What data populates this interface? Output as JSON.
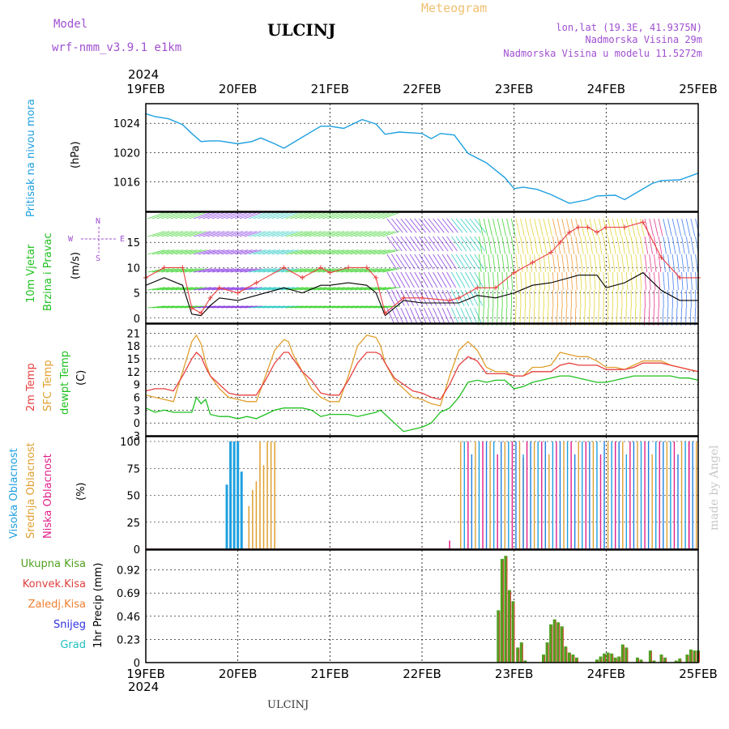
{
  "header": {
    "model_label": "Model",
    "model_name": "wrf-nmm_v3.9.1 e1km",
    "station": "ULCINJ",
    "product": "Meteogram",
    "lonlat": "lon,lat (19.3E, 41.9375N)",
    "altitude": "Nadmorska Visina 29m",
    "model_altitude": "Nadmorska Visina u modelu 11.5272m",
    "year_top": "2024",
    "year_bottom": "2024",
    "footer_station": "ULCINJ",
    "watermark": "made by Angel"
  },
  "colors": {
    "pressure": "#1fa0e0",
    "temp2m": "#e84040",
    "sfc": "#e0a030",
    "dewpt": "#20c020",
    "high_cloud": "#1fa0e0",
    "mid_cloud": "#e0a030",
    "low_cloud": "#e0208a",
    "precip_total": "#50a020",
    "precip_conv": "#e04040",
    "precip_frozen": "#f08030",
    "snow": "#3030e0",
    "graupel": "#20c0c0",
    "model_text": "#a050d0"
  },
  "chart_data": [
    {
      "type": "line",
      "name": "pressure",
      "ylabel_left": "Pritisak na nivou mora",
      "ylabel_unit": "(hPa)",
      "x_unit": "days since 19FEB 00UTC",
      "ylim": [
        1012,
        1026
      ],
      "yticks": [
        1016,
        1020,
        1024
      ],
      "x": [
        0,
        0.1,
        0.25,
        0.4,
        0.5,
        0.6,
        0.7,
        0.8,
        1.0,
        1.15,
        1.25,
        1.4,
        1.5,
        1.7,
        1.9,
        2.0,
        2.15,
        2.35,
        2.5,
        2.6,
        2.75,
        3.0,
        3.1,
        3.2,
        3.35,
        3.5,
        3.7,
        3.9,
        4.0,
        4.1,
        4.25,
        4.4,
        4.6,
        4.8,
        4.9,
        5.1,
        5.2,
        5.5,
        5.6,
        5.8,
        6.0
      ],
      "values": [
        1025.3,
        1024.9,
        1024.6,
        1023.8,
        1022.6,
        1021.5,
        1021.6,
        1021.6,
        1021.2,
        1021.5,
        1022.0,
        1021.2,
        1020.6,
        1022.1,
        1023.6,
        1023.6,
        1023.3,
        1024.5,
        1023.9,
        1022.5,
        1022.8,
        1022.6,
        1021.9,
        1022.6,
        1022.4,
        1019.9,
        1018.6,
        1016.6,
        1015.1,
        1015.3,
        1015.0,
        1014.3,
        1013.1,
        1013.6,
        1014.1,
        1014.2,
        1013.6,
        1015.8,
        1016.2,
        1016.3,
        1017.2
      ]
    },
    {
      "type": "line",
      "name": "wind",
      "ylabel_left_1": "10m Vjetar",
      "ylabel_left_2": "Brzina i Pravac",
      "ylabel_unit": "(m/s)",
      "compass_labels": [
        "N",
        "E",
        "W",
        "S"
      ],
      "ylim": [
        -1,
        20
      ],
      "yticks": [
        0,
        5,
        10,
        15
      ],
      "x": [
        0,
        0.2,
        0.4,
        0.5,
        0.6,
        0.7,
        0.8,
        1.0,
        1.2,
        1.5,
        1.7,
        1.9,
        2.0,
        2.2,
        2.4,
        2.5,
        2.6,
        2.8,
        3.0,
        3.3,
        3.4,
        3.6,
        3.8,
        4.0,
        4.2,
        4.4,
        4.5,
        4.6,
        4.7,
        4.8,
        4.9,
        5.0,
        5.2,
        5.4,
        5.6,
        5.8,
        6.0
      ],
      "series": [
        {
          "name": "brzina",
          "values": [
            6.5,
            8,
            6.5,
            0.8,
            0.5,
            2.5,
            4,
            3.5,
            4.5,
            6,
            5,
            6.5,
            6.5,
            7,
            6.5,
            5,
            0.5,
            3.5,
            3,
            3,
            3,
            4.5,
            4,
            5,
            6.5,
            7,
            7.5,
            8,
            8.5,
            8.5,
            8.5,
            6,
            7,
            9,
            5.5,
            3.5,
            3.5
          ]
        },
        {
          "name": "udari",
          "values": [
            8,
            10,
            10,
            2,
            1,
            4,
            6,
            5,
            7,
            10,
            8,
            10,
            9,
            10,
            10,
            8,
            1,
            4,
            4,
            3.5,
            4,
            6,
            6,
            9,
            11,
            13,
            15,
            17,
            18,
            18,
            17,
            18,
            18,
            19,
            12,
            8,
            8
          ]
        }
      ]
    },
    {
      "type": "line",
      "name": "temperature",
      "ylabel_1": "2m Temp",
      "ylabel_2": "SFC Temp",
      "ylabel_3": "dewpt Temp",
      "ylabel_unit": "(C)",
      "ylim": [
        -3,
        22
      ],
      "yticks": [
        -3,
        0,
        3,
        6,
        9,
        12,
        15,
        18,
        21
      ],
      "x": [
        0,
        0.1,
        0.2,
        0.3,
        0.4,
        0.5,
        0.55,
        0.6,
        0.65,
        0.7,
        0.8,
        0.9,
        1.0,
        1.1,
        1.2,
        1.3,
        1.4,
        1.5,
        1.55,
        1.6,
        1.7,
        1.8,
        1.9,
        2.0,
        2.1,
        2.2,
        2.3,
        2.4,
        2.5,
        2.55,
        2.6,
        2.7,
        2.8,
        2.9,
        3.0,
        3.1,
        3.2,
        3.3,
        3.4,
        3.5,
        3.6,
        3.7,
        3.8,
        3.9,
        4.0,
        4.1,
        4.2,
        4.3,
        4.4,
        4.5,
        4.6,
        4.7,
        4.8,
        4.9,
        5.0,
        5.1,
        5.2,
        5.3,
        5.4,
        5.5,
        5.6,
        5.7,
        5.8,
        5.9,
        6.0
      ],
      "series": [
        {
          "name": "2m Temp",
          "values": [
            7.5,
            8,
            8,
            7.5,
            11,
            15,
            16.5,
            15.5,
            13,
            11,
            9,
            7,
            6.5,
            6.5,
            6.5,
            10,
            14,
            16.5,
            16.5,
            15,
            12,
            10,
            7,
            6.5,
            6.5,
            10,
            14,
            16.5,
            16.5,
            16,
            14,
            10.5,
            9,
            7.5,
            7,
            6,
            5.5,
            9,
            13.5,
            15.5,
            14.5,
            11.5,
            11.5,
            11.5,
            11,
            11,
            12,
            12,
            12,
            13.5,
            14,
            13.5,
            13.5,
            13.5,
            12.5,
            12.5,
            12.5,
            13,
            14,
            14,
            14,
            13.5,
            13,
            12.5,
            12
          ]
        },
        {
          "name": "SFC Temp",
          "values": [
            6.5,
            6,
            5.5,
            5,
            12,
            19,
            20.5,
            18.5,
            14,
            11,
            8,
            6,
            5.5,
            5,
            5,
            11,
            17,
            19.5,
            19,
            16,
            12,
            8,
            6,
            5,
            5,
            11,
            18,
            20.5,
            20,
            18,
            14,
            10,
            8,
            6,
            5.5,
            4.5,
            4,
            11,
            17,
            19,
            17,
            13,
            12,
            12,
            11,
            11,
            13,
            13,
            13.5,
            16.5,
            16,
            15.5,
            15.5,
            14.5,
            13,
            13,
            12.5,
            13.5,
            14.5,
            14.5,
            14.5,
            13.5,
            13,
            12.5,
            12
          ]
        },
        {
          "name": "dewpt Temp",
          "values": [
            3.5,
            2.5,
            3,
            2.5,
            2.5,
            2.5,
            6,
            4.5,
            5.5,
            2,
            1.5,
            1.5,
            1,
            1.5,
            1,
            2,
            3,
            3.5,
            3.5,
            3.5,
            3.5,
            3,
            1.5,
            2,
            2,
            2,
            1.5,
            2,
            2.5,
            3,
            2,
            0,
            -2,
            -1.5,
            -1,
            0,
            2.5,
            3.5,
            6,
            9.5,
            10,
            9.5,
            10,
            10,
            8,
            8.5,
            9.5,
            10,
            10.5,
            11,
            11,
            10.5,
            10,
            9.5,
            9.5,
            10,
            10.5,
            11,
            11,
            11,
            11,
            11,
            10.5,
            10.5,
            10
          ]
        }
      ]
    },
    {
      "type": "bar",
      "name": "cloud",
      "ylabel_1": "Visoka Oblacnost",
      "ylabel_2": "Srednja Oblacnost",
      "ylabel_3": "Niska Oblacnost",
      "ylabel_unit": "(%)",
      "ylim": [
        0,
        100
      ],
      "yticks": [
        0,
        25,
        50,
        75,
        100
      ],
      "series": [
        {
          "name": "Visoka Oblacnost",
          "x": [
            0.88,
            0.92,
            0.96,
            1.0,
            1.04
          ],
          "values": [
            60,
            100,
            100,
            100,
            72
          ]
        },
        {
          "name": "Srednja Oblacnost",
          "x": [
            1.12,
            1.16,
            1.2,
            1.24,
            1.28,
            1.32,
            1.36,
            1.4
          ],
          "values": [
            40,
            55,
            63,
            100,
            78,
            100,
            100,
            100
          ]
        },
        {
          "name": "Niska Oblacnost",
          "x": [
            3.3,
            4.1,
            5.9
          ],
          "values": [
            8,
            85,
            100
          ]
        }
      ],
      "overcast_start": 3.42,
      "overcast_end": 6.0
    },
    {
      "type": "bar",
      "name": "precip",
      "ylabel": "1hr Precip (mm)",
      "legend": [
        "Ukupna Kisa",
        "Konvek.Kisa",
        "Zaledj.Kisa",
        "Snijeg",
        "Grad"
      ],
      "ylim": [
        0,
        1.07
      ],
      "yticks": [
        0,
        0.23,
        0.46,
        0.69,
        0.92
      ],
      "x": [
        3.83,
        3.87,
        3.91,
        3.95,
        3.99,
        4.04,
        4.08,
        4.12,
        4.32,
        4.36,
        4.4,
        4.44,
        4.48,
        4.52,
        4.56,
        4.6,
        4.64,
        4.68,
        4.9,
        4.94,
        4.98,
        5.02,
        5.06,
        5.1,
        5.14,
        5.18,
        5.22,
        5.34,
        5.38,
        5.48,
        5.52,
        5.6,
        5.64,
        5.76,
        5.8,
        5.88,
        5.92,
        5.96,
        6.0
      ],
      "values": [
        0.52,
        1.03,
        1.06,
        0.72,
        0.61,
        0.15,
        0.2,
        0.02,
        0.08,
        0.2,
        0.38,
        0.43,
        0.4,
        0.36,
        0.16,
        0.1,
        0.08,
        0.05,
        0.03,
        0.06,
        0.09,
        0.1,
        0.09,
        0.05,
        0.06,
        0.18,
        0.15,
        0.05,
        0.03,
        0.12,
        0.02,
        0.08,
        0.05,
        0.02,
        0.04,
        0.08,
        0.13,
        0.12,
        0.12
      ]
    }
  ],
  "axis": {
    "date_labels": [
      "19FEB",
      "20FEB",
      "21FEB",
      "22FEB",
      "23FEB",
      "24FEB",
      "25FEB"
    ]
  }
}
